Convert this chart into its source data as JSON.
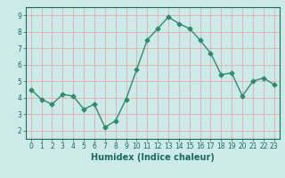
{
  "x": [
    0,
    1,
    2,
    3,
    4,
    5,
    6,
    7,
    8,
    9,
    10,
    11,
    12,
    13,
    14,
    15,
    16,
    17,
    18,
    19,
    20,
    21,
    22,
    23
  ],
  "y": [
    4.5,
    3.9,
    3.6,
    4.2,
    4.1,
    3.3,
    3.6,
    2.2,
    2.6,
    3.9,
    5.7,
    7.5,
    8.2,
    8.9,
    8.5,
    8.2,
    7.5,
    6.7,
    5.4,
    5.5,
    4.1,
    5.0,
    5.2,
    4.8
  ],
  "line_color": "#2e8b6e",
  "marker": "D",
  "marker_size": 2.5,
  "bg_color": "#cceae8",
  "grid_color": "#e8aaaa",
  "axis_color": "#1a6b5a",
  "tick_label_color": "#1a6b5a",
  "xlabel": "Humidex (Indice chaleur)",
  "xlabel_fontsize": 7,
  "xlabel_color": "#1a6b5a",
  "ylim": [
    1.5,
    9.5
  ],
  "xlim": [
    -0.5,
    23.5
  ],
  "yticks": [
    2,
    3,
    4,
    5,
    6,
    7,
    8,
    9
  ],
  "xticks": [
    0,
    1,
    2,
    3,
    4,
    5,
    6,
    7,
    8,
    9,
    10,
    11,
    12,
    13,
    14,
    15,
    16,
    17,
    18,
    19,
    20,
    21,
    22,
    23
  ],
  "tick_fontsize": 5.5,
  "linewidth": 1.0
}
